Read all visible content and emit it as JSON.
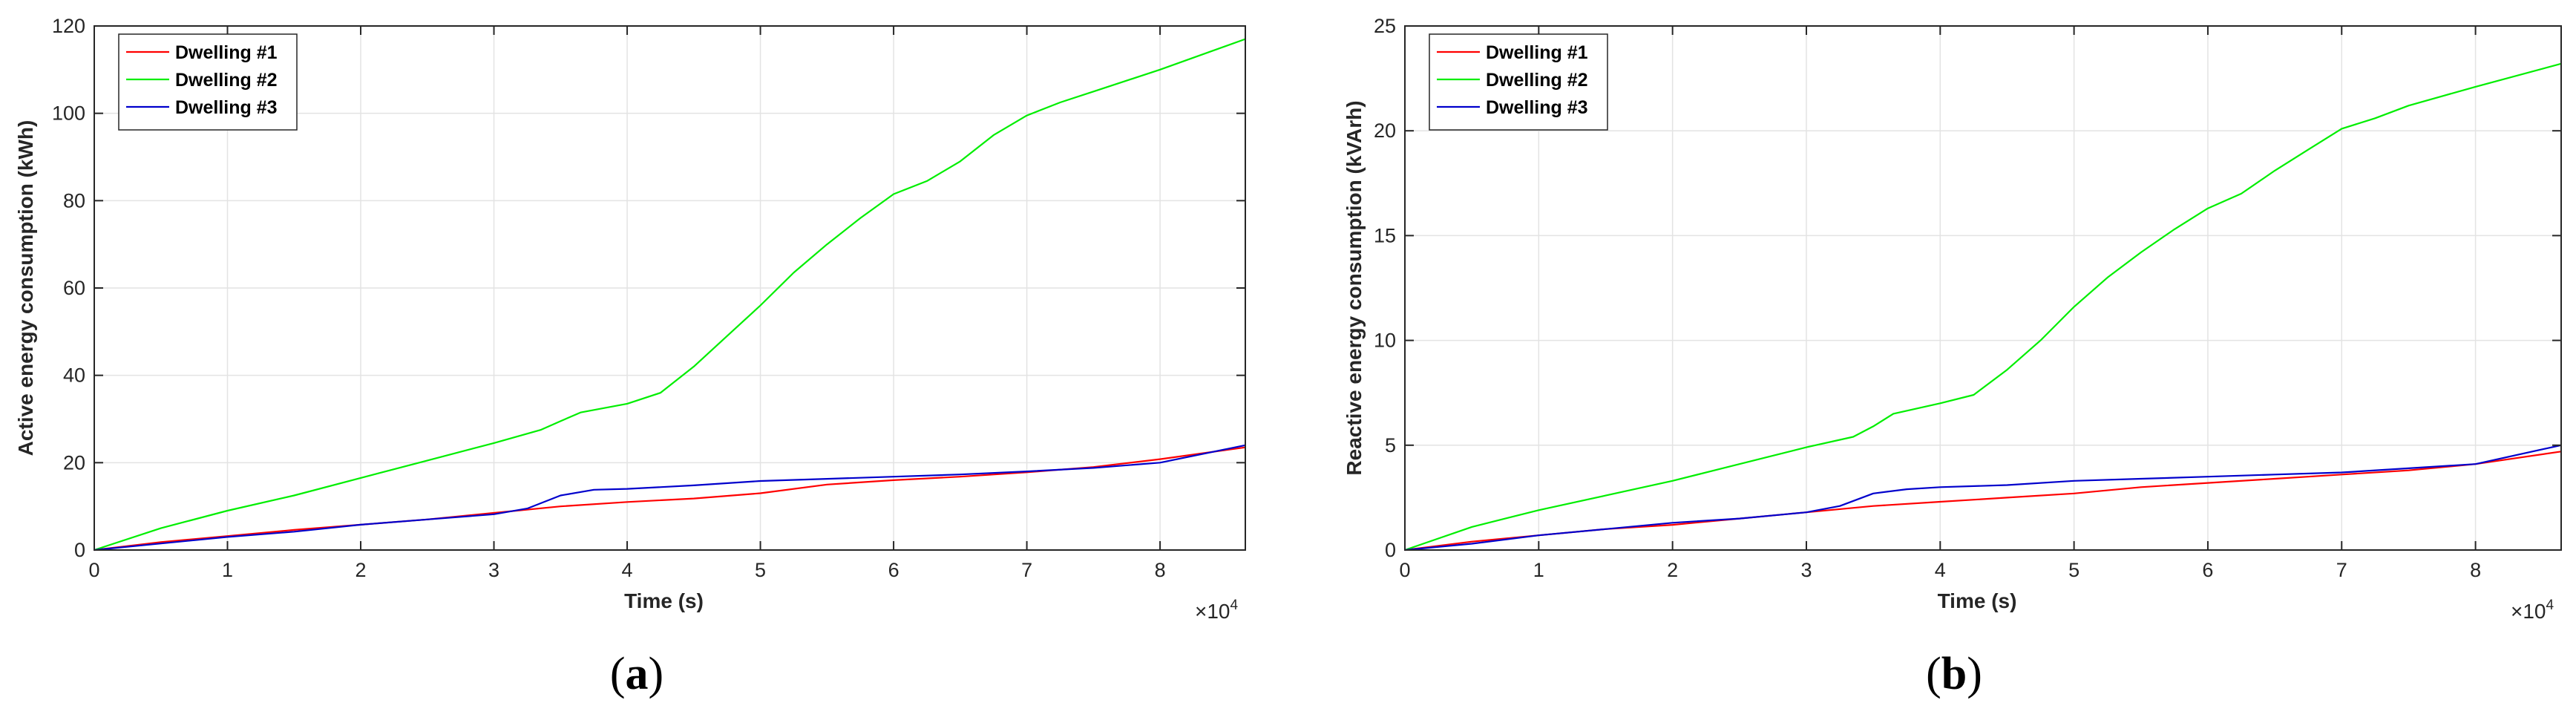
{
  "chart_data": [
    {
      "type": "line",
      "panel_label": "a",
      "xlabel": "Time (s)",
      "ylabel": "Active energy consumption (kWh)",
      "x_multiplier": "×10",
      "x_multiplier_exp": "4",
      "xlim": [
        0,
        86400
      ],
      "ylim": [
        0,
        120
      ],
      "xticks": [
        0,
        10000,
        20000,
        30000,
        40000,
        50000,
        60000,
        70000,
        80000
      ],
      "xtick_labels": [
        "0",
        "1",
        "2",
        "3",
        "4",
        "5",
        "6",
        "7",
        "8"
      ],
      "yticks": [
        0,
        20,
        40,
        60,
        80,
        100,
        120
      ],
      "ytick_labels": [
        "0",
        "20",
        "40",
        "60",
        "80",
        "100",
        "120"
      ],
      "grid": true,
      "legend_position": "top-left",
      "series": [
        {
          "name": "Dwelling #1",
          "color": "#ff0000",
          "x": [
            0,
            5000,
            10000,
            15000,
            20000,
            25000,
            30000,
            35000,
            40000,
            45000,
            50000,
            55000,
            60000,
            65000,
            70000,
            75000,
            80000,
            86400
          ],
          "y": [
            0,
            1.8,
            3.2,
            4.6,
            5.8,
            7,
            8.5,
            10,
            11,
            11.8,
            13,
            15,
            16,
            16.8,
            17.8,
            19,
            20.8,
            23.5
          ]
        },
        {
          "name": "Dwelling #2",
          "color": "#00ee00",
          "x": [
            0,
            5000,
            10000,
            15000,
            20000,
            25000,
            30000,
            33500,
            35000,
            36500,
            40000,
            42500,
            45000,
            47500,
            50000,
            52500,
            55000,
            57500,
            60000,
            62500,
            65000,
            67500,
            70000,
            72500,
            75000,
            80000,
            86400
          ],
          "y": [
            0,
            5,
            9,
            12.5,
            16.5,
            20.5,
            24.5,
            27.5,
            29.5,
            31.5,
            33.5,
            36,
            42,
            49,
            56,
            63.5,
            70,
            76,
            81.5,
            84.5,
            89,
            95,
            99.5,
            102.5,
            105,
            110,
            117
          ]
        },
        {
          "name": "Dwelling #3",
          "color": "#0000cc",
          "x": [
            0,
            5000,
            10000,
            15000,
            20000,
            25000,
            30000,
            32500,
            35000,
            37500,
            40000,
            45000,
            50000,
            55000,
            60000,
            65000,
            70000,
            75000,
            80000,
            86400
          ],
          "y": [
            0,
            1.5,
            3,
            4.2,
            5.8,
            7,
            8.2,
            9.5,
            12.5,
            13.8,
            14,
            14.8,
            15.8,
            16.3,
            16.8,
            17.3,
            18,
            18.8,
            20,
            24
          ]
        }
      ]
    },
    {
      "type": "line",
      "panel_label": "b",
      "xlabel": "Time (s)",
      "ylabel": "Reactive energy consumption (kVArh)",
      "x_multiplier": "×10",
      "x_multiplier_exp": "4",
      "xlim": [
        0,
        86400
      ],
      "ylim": [
        0,
        25
      ],
      "xticks": [
        0,
        10000,
        20000,
        30000,
        40000,
        50000,
        60000,
        70000,
        80000
      ],
      "xtick_labels": [
        "0",
        "1",
        "2",
        "3",
        "4",
        "5",
        "6",
        "7",
        "8"
      ],
      "yticks": [
        0,
        5,
        10,
        15,
        20,
        25
      ],
      "ytick_labels": [
        "0",
        "5",
        "10",
        "15",
        "20",
        "25"
      ],
      "grid": true,
      "legend_position": "top-left",
      "series": [
        {
          "name": "Dwelling #1",
          "color": "#ff0000",
          "x": [
            0,
            5000,
            10000,
            15000,
            20000,
            25000,
            30000,
            35000,
            40000,
            45000,
            50000,
            55000,
            60000,
            65000,
            70000,
            75000,
            80000,
            86400
          ],
          "y": [
            0,
            0.4,
            0.7,
            1,
            1.2,
            1.5,
            1.8,
            2.1,
            2.3,
            2.5,
            2.7,
            3,
            3.2,
            3.4,
            3.6,
            3.8,
            4.1,
            4.7
          ]
        },
        {
          "name": "Dwelling #2",
          "color": "#00ee00",
          "x": [
            0,
            5000,
            10000,
            15000,
            20000,
            25000,
            30000,
            33500,
            35000,
            36500,
            40000,
            42500,
            45000,
            47500,
            50000,
            52500,
            55000,
            57500,
            60000,
            62500,
            65000,
            67500,
            70000,
            72500,
            75000,
            80000,
            86400
          ],
          "y": [
            0,
            1.1,
            1.9,
            2.6,
            3.3,
            4.1,
            4.9,
            5.4,
            5.9,
            6.5,
            7,
            7.4,
            8.6,
            10,
            11.6,
            13,
            14.2,
            15.3,
            16.3,
            17,
            18.1,
            19.1,
            20.1,
            20.6,
            21.2,
            22.1,
            23.2
          ]
        },
        {
          "name": "Dwelling #3",
          "color": "#0000cc",
          "x": [
            0,
            5000,
            10000,
            15000,
            20000,
            25000,
            30000,
            32500,
            35000,
            37500,
            40000,
            45000,
            50000,
            55000,
            60000,
            65000,
            70000,
            75000,
            80000,
            86400
          ],
          "y": [
            0,
            0.3,
            0.7,
            1,
            1.3,
            1.5,
            1.8,
            2.1,
            2.7,
            2.9,
            3,
            3.1,
            3.3,
            3.4,
            3.5,
            3.6,
            3.7,
            3.9,
            4.1,
            5
          ]
        }
      ]
    }
  ]
}
